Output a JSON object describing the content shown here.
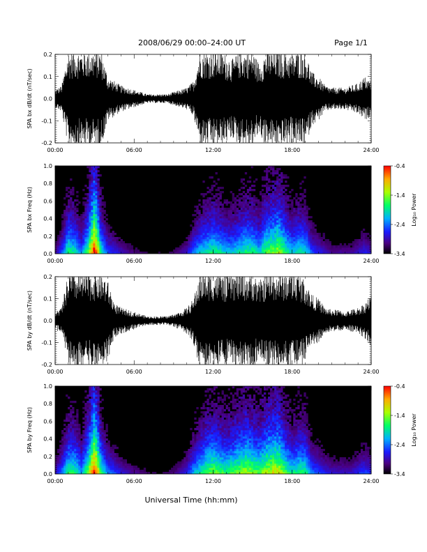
{
  "header": {
    "title": "2008/06/29  00:00–24:00 UT",
    "page": "Page 1/1"
  },
  "footer": {
    "xlabel": "Universal Time (hh:mm)"
  },
  "chart_data": [
    {
      "type": "line",
      "ylabel": "SPA bx dB/dt (nT/sec)",
      "xlim_hours": [
        0,
        24
      ],
      "ylim": [
        -0.2,
        0.2
      ],
      "yticks": [
        "0.2",
        "0.1",
        "0.0",
        "-0.1",
        "-0.2"
      ],
      "xticks": [
        "00:00",
        "06:00",
        "12:00",
        "18:00",
        "24:00"
      ],
      "amplitude_envelope": {
        "hours": [
          0,
          0.5,
          1,
          1.5,
          2,
          2.5,
          3,
          3.5,
          4,
          4.5,
          5,
          5.5,
          6,
          6.5,
          7,
          7.5,
          8,
          8.5,
          9,
          9.5,
          10,
          10.5,
          11,
          11.5,
          12,
          12.5,
          13,
          13.5,
          14,
          14.5,
          15,
          15.5,
          16,
          16.5,
          17,
          17.5,
          18,
          18.5,
          19,
          19.5,
          20,
          20.5,
          21,
          21.5,
          22,
          22.5,
          23,
          23.5,
          24
        ],
        "amp": [
          0.04,
          0.06,
          0.22,
          0.22,
          0.22,
          0.22,
          0.22,
          0.22,
          0.1,
          0.08,
          0.06,
          0.05,
          0.04,
          0.03,
          0.02,
          0.02,
          0.02,
          0.02,
          0.03,
          0.04,
          0.05,
          0.08,
          0.22,
          0.22,
          0.22,
          0.22,
          0.2,
          0.18,
          0.22,
          0.22,
          0.22,
          0.16,
          0.22,
          0.22,
          0.22,
          0.22,
          0.2,
          0.22,
          0.22,
          0.12,
          0.1,
          0.06,
          0.05,
          0.05,
          0.05,
          0.06,
          0.07,
          0.1,
          0.08
        ]
      }
    },
    {
      "type": "heatmap",
      "ylabel": "SPA bx Freq (Hz)",
      "xlim_hours": [
        0,
        24
      ],
      "ylim": [
        0,
        1.0
      ],
      "yticks": [
        "1.0",
        "0.8",
        "0.6",
        "0.4",
        "0.2",
        "0.0"
      ],
      "xticks": [
        "00:00",
        "06:00",
        "12:00",
        "18:00",
        "24:00"
      ],
      "colorbar": {
        "label": "Log₁₀ Power",
        "ticks": [
          "-0.4",
          "-1.4",
          "-2.4",
          "-3.4"
        ],
        "range": [
          -3.4,
          -0.4
        ]
      },
      "activity": {
        "hours": [
          0,
          0.5,
          1,
          1.5,
          2,
          2.5,
          3,
          3.5,
          4,
          4.5,
          5,
          5.5,
          6,
          6.5,
          7,
          7.5,
          8,
          8.5,
          9,
          9.5,
          10,
          10.5,
          11,
          11.5,
          12,
          12.5,
          13,
          13.5,
          14,
          14.5,
          15,
          15.5,
          16,
          16.5,
          17,
          17.5,
          18,
          18.5,
          19,
          19.5,
          20,
          20.5,
          21,
          21.5,
          22,
          22.5,
          23,
          23.5,
          24
        ],
        "level": [
          0.15,
          0.3,
          0.55,
          0.5,
          0.35,
          0.6,
          1.0,
          0.5,
          0.3,
          0.25,
          0.2,
          0.15,
          0.12,
          0.1,
          0.08,
          0.07,
          0.08,
          0.08,
          0.1,
          0.15,
          0.2,
          0.35,
          0.45,
          0.5,
          0.55,
          0.5,
          0.45,
          0.45,
          0.5,
          0.55,
          0.55,
          0.45,
          0.6,
          0.65,
          0.7,
          0.55,
          0.45,
          0.5,
          0.5,
          0.3,
          0.25,
          0.2,
          0.15,
          0.15,
          0.15,
          0.15,
          0.2,
          0.25,
          0.2
        ]
      }
    },
    {
      "type": "line",
      "ylabel": "SPA by dB/dt (nT/sec)",
      "xlim_hours": [
        0,
        24
      ],
      "ylim": [
        -0.2,
        0.2
      ],
      "yticks": [
        "0.2",
        "0.1",
        "0.0",
        "-0.1",
        "-0.2"
      ],
      "xticks": [
        "00:00",
        "06:00",
        "12:00",
        "18:00",
        "24:00"
      ],
      "amplitude_envelope": {
        "hours": [
          0,
          0.5,
          1,
          1.5,
          2,
          2.5,
          3,
          3.5,
          4,
          4.5,
          5,
          5.5,
          6,
          6.5,
          7,
          7.5,
          8,
          8.5,
          9,
          9.5,
          10,
          10.5,
          11,
          11.5,
          12,
          12.5,
          13,
          13.5,
          14,
          14.5,
          15,
          15.5,
          16,
          16.5,
          17,
          17.5,
          18,
          18.5,
          19,
          19.5,
          20,
          20.5,
          21,
          21.5,
          22,
          22.5,
          23,
          23.5,
          24
        ],
        "amp": [
          0.04,
          0.06,
          0.22,
          0.22,
          0.22,
          0.22,
          0.22,
          0.22,
          0.18,
          0.08,
          0.06,
          0.05,
          0.04,
          0.03,
          0.02,
          0.02,
          0.02,
          0.02,
          0.03,
          0.04,
          0.06,
          0.1,
          0.22,
          0.22,
          0.22,
          0.22,
          0.2,
          0.22,
          0.22,
          0.22,
          0.22,
          0.18,
          0.22,
          0.22,
          0.22,
          0.22,
          0.22,
          0.22,
          0.18,
          0.12,
          0.1,
          0.06,
          0.05,
          0.05,
          0.04,
          0.05,
          0.06,
          0.08,
          0.12
        ]
      }
    },
    {
      "type": "heatmap",
      "ylabel": "SPA by Freq (Hz)",
      "xlim_hours": [
        0,
        24
      ],
      "ylim": [
        0,
        1.0
      ],
      "yticks": [
        "1.0",
        "0.8",
        "0.6",
        "0.4",
        "0.2",
        "0.0"
      ],
      "xticks": [
        "00:00",
        "06:00",
        "12:00",
        "18:00",
        "24:00"
      ],
      "colorbar": {
        "label": "Log₁₀ Power",
        "ticks": [
          "-0.4",
          "-1.4",
          "-2.4",
          "-3.4"
        ],
        "range": [
          -3.4,
          -0.4
        ]
      },
      "activity": {
        "hours": [
          0,
          0.5,
          1,
          1.5,
          2,
          2.5,
          3,
          3.5,
          4,
          4.5,
          5,
          5.5,
          6,
          6.5,
          7,
          7.5,
          8,
          8.5,
          9,
          9.5,
          10,
          10.5,
          11,
          11.5,
          12,
          12.5,
          13,
          13.5,
          14,
          14.5,
          15,
          15.5,
          16,
          16.5,
          17,
          17.5,
          18,
          18.5,
          19,
          19.5,
          20,
          20.5,
          21,
          21.5,
          22,
          22.5,
          23,
          23.5,
          24
        ],
        "level": [
          0.2,
          0.35,
          0.55,
          0.55,
          0.4,
          0.65,
          1.0,
          0.55,
          0.35,
          0.3,
          0.22,
          0.18,
          0.15,
          0.12,
          0.1,
          0.08,
          0.08,
          0.1,
          0.12,
          0.18,
          0.25,
          0.4,
          0.5,
          0.6,
          0.65,
          0.6,
          0.55,
          0.6,
          0.65,
          0.7,
          0.65,
          0.6,
          0.7,
          0.75,
          0.75,
          0.6,
          0.5,
          0.55,
          0.55,
          0.35,
          0.3,
          0.25,
          0.2,
          0.2,
          0.2,
          0.2,
          0.25,
          0.3,
          0.25
        ]
      }
    }
  ]
}
